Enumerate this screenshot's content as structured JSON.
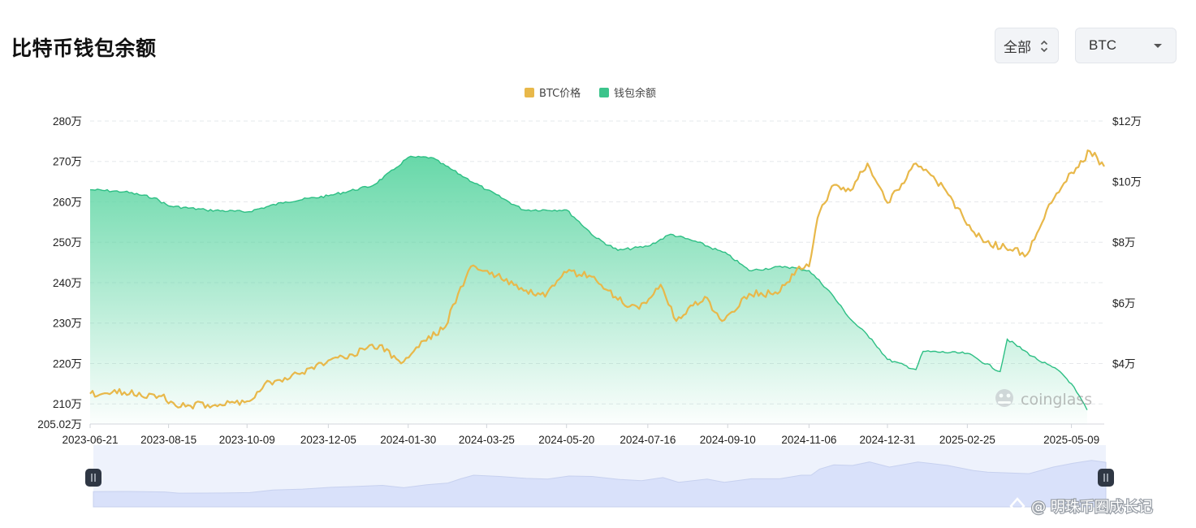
{
  "page": {
    "title": "比特币钱包余额",
    "range_select": "全部",
    "coin_select": "BTC"
  },
  "watermarks": {
    "brand": "coinglass",
    "credit": "@ 明珠币圈成长记"
  },
  "colors": {
    "price_line": "#e8b84a",
    "balance_fill_top": "#5fd6a4",
    "balance_line": "#2dbf84",
    "grid": "#e6e8eb",
    "slider_bg": "#eef2fc",
    "slider_fill": "#d9e1fa",
    "handle": "#2f3744"
  },
  "chart_data": {
    "type": "area",
    "legend": [
      "BTC价格",
      "钱包余额"
    ],
    "x_ticks": [
      "2023-06-21",
      "2023-08-15",
      "2023-10-09",
      "2023-12-05",
      "2024-01-30",
      "2024-03-25",
      "2024-05-20",
      "2024-07-16",
      "2024-09-10",
      "2024-11-06",
      "2024-12-31",
      "2025-02-25",
      "2025-05-09"
    ],
    "y_left_ticks": [
      "280万",
      "270万",
      "260万",
      "250万",
      "240万",
      "230万",
      "220万",
      "210万",
      "205.02万"
    ],
    "y_right_ticks": [
      "$12万",
      "$10万",
      "$8万",
      "$6万",
      "$4万"
    ],
    "y_left_range_wan": [
      205.02,
      280
    ],
    "y_right_range_usd": [
      20000,
      120000
    ],
    "grid": true,
    "series": [
      {
        "name": "钱包余额",
        "axis": "left",
        "unit": "万 BTC",
        "x": [
          "2023-06-21",
          "2023-07-15",
          "2023-08-05",
          "2023-08-15",
          "2023-09-10",
          "2023-10-09",
          "2023-11-05",
          "2023-12-05",
          "2024-01-05",
          "2024-01-20",
          "2024-01-30",
          "2024-02-15",
          "2024-03-10",
          "2024-03-25",
          "2024-04-20",
          "2024-05-20",
          "2024-06-10",
          "2024-06-25",
          "2024-07-16",
          "2024-08-01",
          "2024-08-20",
          "2024-09-10",
          "2024-09-25",
          "2024-10-20",
          "2024-11-06",
          "2024-11-20",
          "2024-12-05",
          "2024-12-20",
          "2024-12-31",
          "2025-01-20",
          "2025-01-25",
          "2025-02-25",
          "2025-03-20",
          "2025-03-25",
          "2025-04-15",
          "2025-05-01",
          "2025-05-09",
          "2025-05-20"
        ],
        "values": [
          263,
          262.5,
          261,
          259,
          258,
          257.5,
          260,
          261.5,
          264,
          268,
          271,
          271,
          266,
          263,
          258,
          258,
          251,
          248,
          249,
          252,
          250,
          247,
          243,
          244,
          243,
          238,
          231,
          226,
          221,
          218.5,
          223,
          222.5,
          218,
          226,
          221,
          218,
          215,
          208.5
        ]
      },
      {
        "name": "BTC价格",
        "axis": "right",
        "unit": "USD",
        "x": [
          "2023-06-21",
          "2023-07-15",
          "2023-08-10",
          "2023-08-20",
          "2023-09-20",
          "2023-10-09",
          "2023-10-25",
          "2023-11-15",
          "2023-12-05",
          "2023-12-20",
          "2024-01-10",
          "2024-01-25",
          "2024-02-10",
          "2024-02-25",
          "2024-03-05",
          "2024-03-14",
          "2024-04-01",
          "2024-04-20",
          "2024-05-05",
          "2024-05-20",
          "2024-06-05",
          "2024-06-25",
          "2024-07-10",
          "2024-07-25",
          "2024-08-05",
          "2024-08-25",
          "2024-09-06",
          "2024-09-25",
          "2024-10-15",
          "2024-10-30",
          "2024-11-06",
          "2024-11-12",
          "2024-11-22",
          "2024-12-05",
          "2024-12-17",
          "2024-12-31",
          "2025-01-20",
          "2025-02-10",
          "2025-02-28",
          "2025-03-10",
          "2025-04-08",
          "2025-04-25",
          "2025-05-09",
          "2025-05-22",
          "2025-06-01"
        ],
        "values": [
          30000,
          30500,
          29200,
          26000,
          26500,
          27500,
          34000,
          36500,
          41000,
          43000,
          46000,
          40000,
          47500,
          52000,
          63000,
          72000,
          69000,
          64000,
          62000,
          70000,
          69000,
          61000,
          58000,
          66000,
          54000,
          62000,
          54000,
          63000,
          63000,
          72000,
          72000,
          88000,
          98500,
          97000,
          106000,
          93000,
          106000,
          97000,
          84000,
          80000,
          76000,
          93000,
          103000,
          110000,
          105000
        ]
      }
    ]
  }
}
